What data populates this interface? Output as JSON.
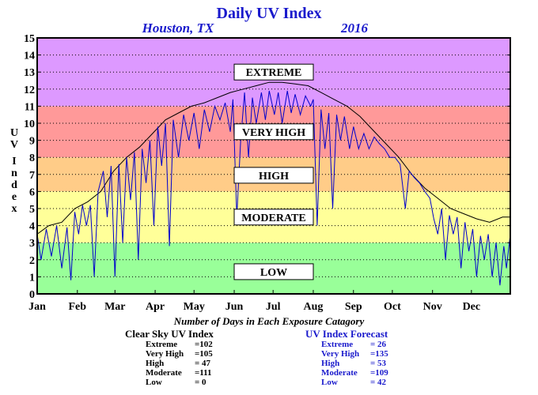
{
  "chart_data": {
    "type": "line",
    "title": "Daily UV Index",
    "subtitle_location": "Houston, TX",
    "subtitle_year": "2016",
    "ylabel": "UV Index",
    "xlabel": "",
    "ylim": [
      0,
      15
    ],
    "xlim": [
      1,
      366
    ],
    "grid": true,
    "month_ticks": [
      {
        "label": "Jan",
        "day": 1
      },
      {
        "label": "Feb",
        "day": 32
      },
      {
        "label": "Mar",
        "day": 61
      },
      {
        "label": "Apr",
        "day": 92
      },
      {
        "label": "May",
        "day": 122
      },
      {
        "label": "Jun",
        "day": 153
      },
      {
        "label": "Jul",
        "day": 183
      },
      {
        "label": "Aug",
        "day": 214
      },
      {
        "label": "Sep",
        "day": 245
      },
      {
        "label": "Oct",
        "day": 275
      },
      {
        "label": "Nov",
        "day": 306
      },
      {
        "label": "Dec",
        "day": 336
      }
    ],
    "y_ticks": [
      0,
      1,
      2,
      3,
      4,
      5,
      6,
      7,
      8,
      9,
      10,
      11,
      12,
      13,
      14,
      15
    ],
    "bands": [
      {
        "label": "LOW",
        "from": 0,
        "to": 3,
        "color": "#99ff99"
      },
      {
        "label": "MODERATE",
        "from": 3,
        "to": 6,
        "color": "#ffff99"
      },
      {
        "label": "HIGH",
        "from": 6,
        "to": 8,
        "color": "#ffcc88"
      },
      {
        "label": "VERY HIGH",
        "from": 8,
        "to": 11,
        "color": "#ff9999"
      },
      {
        "label": "EXTREME",
        "from": 11,
        "to": 15,
        "color": "#dd99ff"
      }
    ],
    "series": [
      {
        "key": "clear_sky",
        "color": "#000000",
        "points": [
          [
            1,
            3.5
          ],
          [
            10,
            4.0
          ],
          [
            20,
            4.2
          ],
          [
            30,
            5.0
          ],
          [
            40,
            5.4
          ],
          [
            50,
            6.0
          ],
          [
            60,
            7.2
          ],
          [
            70,
            8.0
          ],
          [
            80,
            8.6
          ],
          [
            90,
            9.4
          ],
          [
            100,
            10.2
          ],
          [
            110,
            10.6
          ],
          [
            120,
            11.0
          ],
          [
            130,
            11.2
          ],
          [
            140,
            11.5
          ],
          [
            150,
            11.8
          ],
          [
            160,
            12.0
          ],
          [
            170,
            12.2
          ],
          [
            180,
            12.4
          ],
          [
            190,
            12.4
          ],
          [
            200,
            12.3
          ],
          [
            210,
            12.2
          ],
          [
            220,
            11.8
          ],
          [
            230,
            11.4
          ],
          [
            240,
            11.0
          ],
          [
            250,
            10.4
          ],
          [
            260,
            9.6
          ],
          [
            270,
            8.8
          ],
          [
            280,
            8.0
          ],
          [
            290,
            7.0
          ],
          [
            300,
            6.2
          ],
          [
            310,
            5.6
          ],
          [
            320,
            5.0
          ],
          [
            330,
            4.7
          ],
          [
            340,
            4.4
          ],
          [
            350,
            4.2
          ],
          [
            360,
            4.5
          ],
          [
            366,
            4.5
          ]
        ]
      },
      {
        "key": "forecast",
        "color": "#0000cc",
        "points": [
          [
            1,
            3.5
          ],
          [
            4,
            2.0
          ],
          [
            8,
            3.8
          ],
          [
            12,
            2.2
          ],
          [
            16,
            4.0
          ],
          [
            20,
            1.5
          ],
          [
            24,
            3.9
          ],
          [
            27,
            0.8
          ],
          [
            30,
            4.8
          ],
          [
            33,
            3.5
          ],
          [
            36,
            5.2
          ],
          [
            39,
            4.0
          ],
          [
            42,
            5.2
          ],
          [
            45,
            1.0
          ],
          [
            48,
            6.0
          ],
          [
            52,
            7.2
          ],
          [
            55,
            4.5
          ],
          [
            58,
            7.5
          ],
          [
            61,
            1.0
          ],
          [
            64,
            7.6
          ],
          [
            67,
            3.0
          ],
          [
            70,
            8.0
          ],
          [
            73,
            5.5
          ],
          [
            76,
            8.3
          ],
          [
            79,
            2.0
          ],
          [
            82,
            8.5
          ],
          [
            85,
            6.5
          ],
          [
            88,
            9.0
          ],
          [
            91,
            4.0
          ],
          [
            94,
            9.8
          ],
          [
            97,
            7.5
          ],
          [
            100,
            10.0
          ],
          [
            103,
            2.8
          ],
          [
            106,
            10.2
          ],
          [
            110,
            8.0
          ],
          [
            114,
            10.5
          ],
          [
            118,
            9.0
          ],
          [
            122,
            10.6
          ],
          [
            126,
            8.5
          ],
          [
            130,
            10.8
          ],
          [
            134,
            9.5
          ],
          [
            138,
            11.0
          ],
          [
            142,
            10.2
          ],
          [
            146,
            11.2
          ],
          [
            150,
            9.5
          ],
          [
            152,
            11.4
          ],
          [
            155,
            4.5
          ],
          [
            158,
            9.0
          ],
          [
            161,
            11.8
          ],
          [
            164,
            8.0
          ],
          [
            167,
            11.5
          ],
          [
            170,
            10.0
          ],
          [
            174,
            11.8
          ],
          [
            177,
            10.2
          ],
          [
            180,
            11.9
          ],
          [
            184,
            10.5
          ],
          [
            187,
            11.8
          ],
          [
            190,
            10.0
          ],
          [
            194,
            11.9
          ],
          [
            197,
            10.6
          ],
          [
            200,
            11.7
          ],
          [
            204,
            10.5
          ],
          [
            208,
            11.6
          ],
          [
            212,
            11.0
          ],
          [
            214,
            11.4
          ],
          [
            217,
            4.0
          ],
          [
            220,
            10.8
          ],
          [
            223,
            8.5
          ],
          [
            226,
            10.6
          ],
          [
            229,
            5.0
          ],
          [
            232,
            10.5
          ],
          [
            235,
            9.0
          ],
          [
            238,
            10.4
          ],
          [
            242,
            8.5
          ],
          [
            245,
            9.8
          ],
          [
            249,
            8.5
          ],
          [
            253,
            9.4
          ],
          [
            257,
            8.5
          ],
          [
            261,
            9.2
          ],
          [
            265,
            8.8
          ],
          [
            269,
            8.5
          ],
          [
            273,
            8.0
          ],
          [
            277,
            8.0
          ],
          [
            281,
            7.6
          ],
          [
            285,
            5.0
          ],
          [
            288,
            7.2
          ],
          [
            292,
            6.8
          ],
          [
            296,
            6.5
          ],
          [
            300,
            6.0
          ],
          [
            304,
            5.6
          ],
          [
            307,
            4.4
          ],
          [
            310,
            3.5
          ],
          [
            313,
            5.0
          ],
          [
            316,
            2.0
          ],
          [
            319,
            4.6
          ],
          [
            322,
            3.5
          ],
          [
            325,
            4.5
          ],
          [
            328,
            1.5
          ],
          [
            331,
            4.2
          ],
          [
            334,
            2.5
          ],
          [
            337,
            3.8
          ],
          [
            340,
            1.0
          ],
          [
            343,
            3.4
          ],
          [
            346,
            2.0
          ],
          [
            349,
            3.5
          ],
          [
            352,
            1.0
          ],
          [
            355,
            3.0
          ],
          [
            358,
            0.5
          ],
          [
            361,
            2.8
          ],
          [
            363,
            1.5
          ],
          [
            366,
            3.5
          ]
        ]
      }
    ],
    "caption": "Number of Days in Each Exposure Catagory",
    "summary": {
      "clear_sky": {
        "title": "Clear Sky UV Index",
        "rows": [
          {
            "label": "Extreme",
            "value": "=102"
          },
          {
            "label": "Very High",
            "value": "=105"
          },
          {
            "label": "High",
            "value": "=  47"
          },
          {
            "label": "Moderate",
            "value": "=111"
          },
          {
            "label": "Low",
            "value": "=    0"
          }
        ]
      },
      "forecast": {
        "title": "UV Index Forecast",
        "rows": [
          {
            "label": "Extreme",
            "value": "=  26"
          },
          {
            "label": "Very High",
            "value": "=135"
          },
          {
            "label": "High",
            "value": "=  53"
          },
          {
            "label": "Moderate",
            "value": "=109"
          },
          {
            "label": "Low",
            "value": "=  42"
          }
        ]
      }
    }
  }
}
